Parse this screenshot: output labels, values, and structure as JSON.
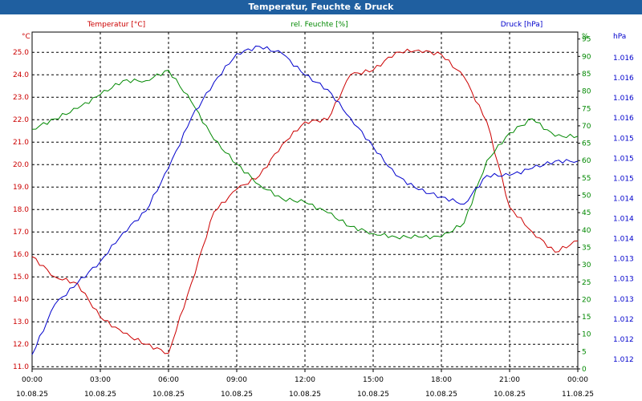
{
  "window": {
    "title": "Temperatur, Feuchte & Druck"
  },
  "chart_data": {
    "type": "line",
    "title": "Temperatur, Feuchte & Druck",
    "x": [
      0,
      1,
      2,
      3,
      4,
      5,
      6,
      7,
      8,
      9,
      10,
      11,
      12,
      13,
      14,
      15,
      16,
      17,
      18,
      19,
      20,
      21,
      22,
      23,
      24
    ],
    "x_ticks": [
      {
        "value": 0,
        "time": "00:00",
        "date": "10.08.25"
      },
      {
        "value": 3,
        "time": "03:00",
        "date": "10.08.25"
      },
      {
        "value": 6,
        "time": "06:00",
        "date": "10.08.25"
      },
      {
        "value": 9,
        "time": "09:00",
        "date": "10.08.25"
      },
      {
        "value": 12,
        "time": "12:00",
        "date": "10.08.25"
      },
      {
        "value": 15,
        "time": "15:00",
        "date": "10.08.25"
      },
      {
        "value": 18,
        "time": "18:00",
        "date": "10.08.25"
      },
      {
        "value": 21,
        "time": "21:00",
        "date": "10.08.25"
      },
      {
        "value": 24,
        "time": "00:00",
        "date": "11.08.25"
      }
    ],
    "xlim": [
      0,
      24
    ],
    "axes": {
      "left": {
        "label": "Temperatur [°C]",
        "unit": "°C",
        "color": "#cc0000",
        "range": [
          10.9,
          25.9
        ],
        "ticks": [
          "11.0",
          "12.0",
          "13.0",
          "14.0",
          "15.0",
          "16.0",
          "17.0",
          "18.0",
          "19.0",
          "20.0",
          "21.0",
          "22.0",
          "23.0",
          "24.0",
          "25.0"
        ]
      },
      "right1": {
        "label": "rel. Feuchte [%]",
        "unit": "%",
        "color": "#008800",
        "range": [
          0,
          97
        ],
        "ticks": [
          "0",
          "5",
          "10",
          "15",
          "20",
          "25",
          "30",
          "35",
          "40",
          "45",
          "50",
          "55",
          "60",
          "65",
          "70",
          "75",
          "80",
          "85",
          "90",
          "95"
        ]
      },
      "right2": {
        "label": "Druck [hPa]",
        "unit": "hPa",
        "color": "#0000cc",
        "range": [
          1011.8,
          1016.5
        ],
        "ticks": [
          "1.012",
          "1.012",
          "1.012",
          "1.013",
          "1.013",
          "1.013",
          "1.014",
          "1.014",
          "1.014",
          "1.015",
          "1.015",
          "1.015",
          "1.016",
          "1.016",
          "1.016",
          "1.016"
        ]
      }
    },
    "grid": true,
    "series": [
      {
        "name": "Temperatur [°C]",
        "axis": "left",
        "color": "#cc0000",
        "values": [
          15.9,
          15.0,
          14.7,
          13.2,
          12.5,
          12.0,
          11.6,
          14.7,
          17.9,
          18.9,
          19.5,
          20.9,
          21.9,
          22.0,
          24.0,
          24.2,
          25.0,
          25.1,
          24.9,
          23.9,
          21.9,
          18.1,
          17.0,
          16.1,
          16.6
        ]
      },
      {
        "name": "rel. Feuchte [%]",
        "axis": "right1",
        "color": "#008800",
        "values": [
          69,
          72,
          75,
          79,
          83,
          83,
          86,
          77,
          66,
          59,
          53,
          49,
          48,
          45,
          41,
          39,
          38,
          38,
          38,
          42,
          60,
          68,
          72,
          67,
          67
        ]
      },
      {
        "name": "Druck [hPa]",
        "axis": "right2",
        "color": "#0000cc",
        "values": [
          1012.0,
          1012.7,
          1013.0,
          1013.3,
          1013.7,
          1014.0,
          1014.6,
          1015.3,
          1015.8,
          1016.2,
          1016.3,
          1016.2,
          1015.9,
          1015.7,
          1015.3,
          1014.9,
          1014.5,
          1014.3,
          1014.2,
          1014.1,
          1014.5,
          1014.5,
          1014.6,
          1014.7,
          1014.7
        ]
      }
    ]
  }
}
